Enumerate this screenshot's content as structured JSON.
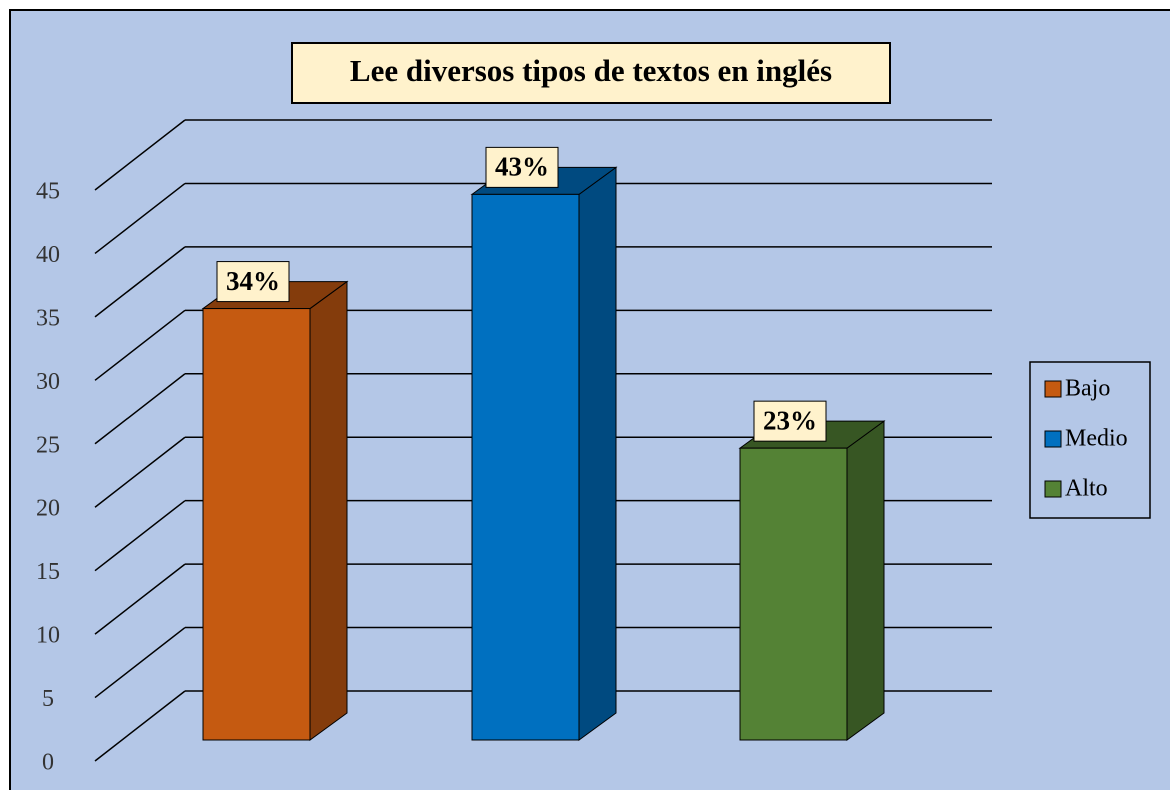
{
  "chart_data": {
    "type": "bar3d",
    "title": "Lee diversos tipos de textos en inglés",
    "series": [
      {
        "name": "Bajo",
        "color": "#c55a11",
        "side": "#843c0c",
        "values": [
          34
        ],
        "value_labels": [
          "34%"
        ]
      },
      {
        "name": "Medio",
        "color": "#0070c0",
        "side": "#004a80",
        "values": [
          43
        ],
        "value_labels": [
          "43%"
        ]
      },
      {
        "name": "Alto",
        "color": "#548235",
        "side": "#375623",
        "values": [
          23
        ],
        "value_labels": [
          "23%"
        ]
      }
    ],
    "ylim": [
      0,
      45
    ],
    "yticks": [
      0,
      5,
      10,
      15,
      20,
      25,
      30,
      35,
      40,
      45
    ],
    "grid": true,
    "legend": "right"
  }
}
